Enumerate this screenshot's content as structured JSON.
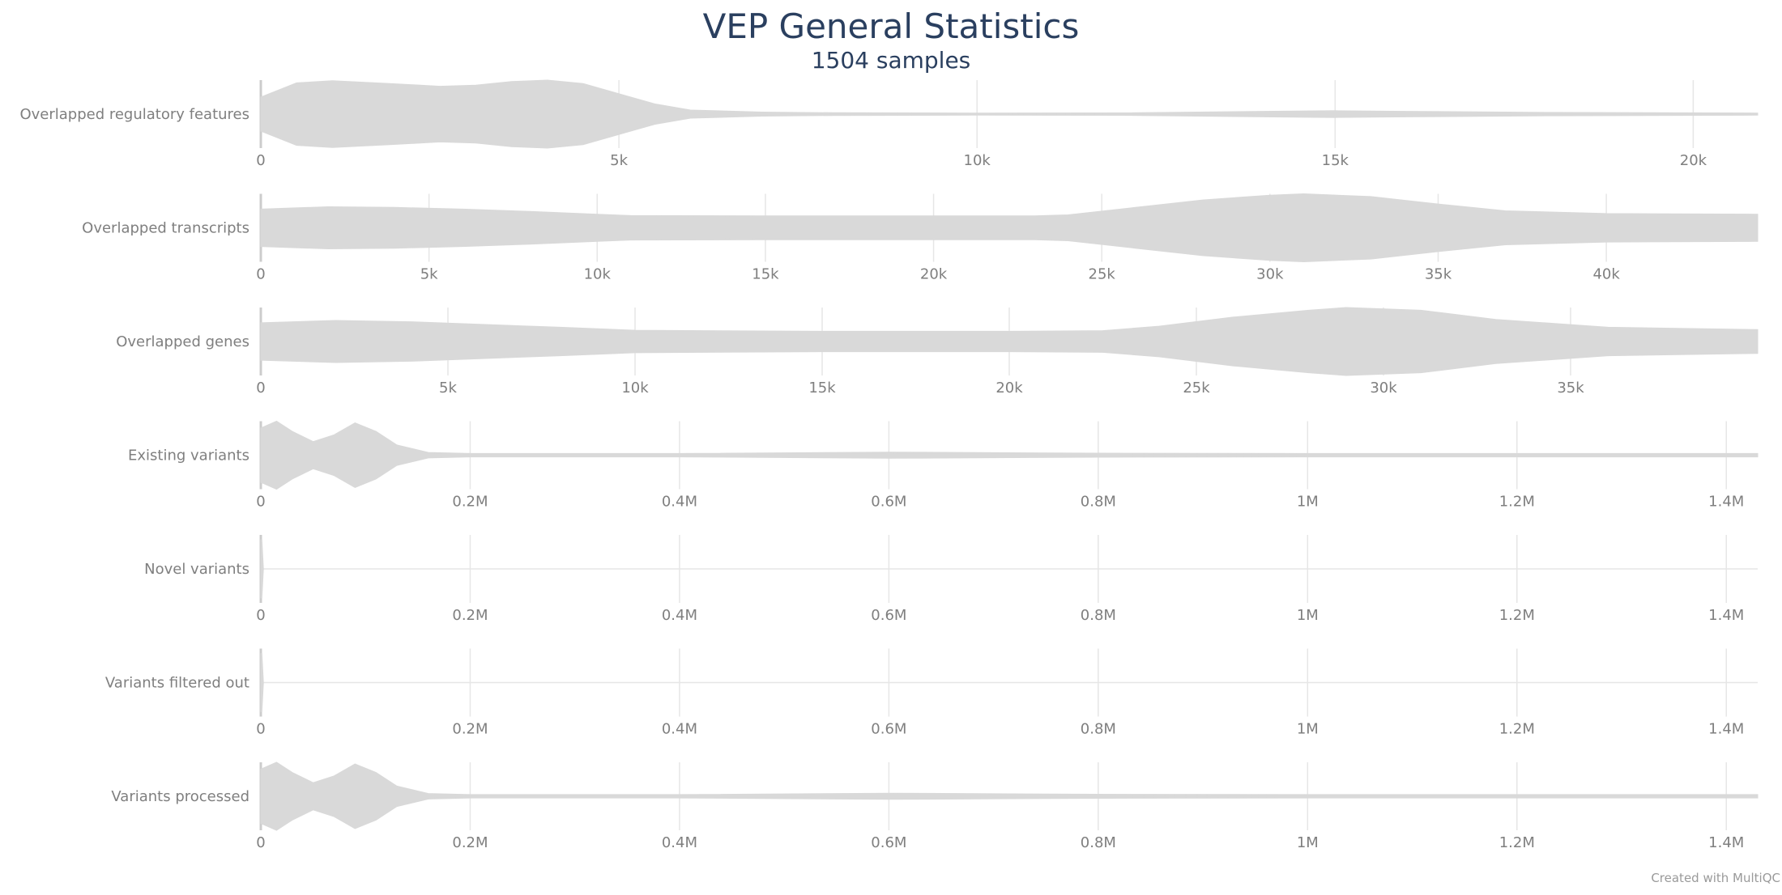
{
  "title": "VEP General Statistics",
  "subtitle": "1504 samples",
  "credit": "Created with MultiQC",
  "colors": {
    "violin": "#d9d9d9",
    "grid": "#e6e6e6",
    "axis": "#cccccc"
  },
  "chart_data": {
    "type": "violin",
    "grid": true,
    "metrics": [
      {
        "label": "Overlapped regulatory features",
        "range": [
          0,
          20900
        ],
        "ticks": [
          0,
          5000,
          10000,
          15000,
          20000
        ],
        "tick_labels": [
          "0",
          "5k",
          "10k",
          "15k",
          "20k"
        ],
        "density": [
          [
            0,
            0.5
          ],
          [
            500,
            0.92
          ],
          [
            1000,
            0.98
          ],
          [
            1800,
            0.9
          ],
          [
            2500,
            0.82
          ],
          [
            3000,
            0.85
          ],
          [
            3500,
            0.96
          ],
          [
            4000,
            1.0
          ],
          [
            4500,
            0.9
          ],
          [
            5000,
            0.6
          ],
          [
            5500,
            0.3
          ],
          [
            6000,
            0.12
          ],
          [
            7000,
            0.06
          ],
          [
            8000,
            0.04
          ],
          [
            10000,
            0.03
          ],
          [
            12000,
            0.035
          ],
          [
            14000,
            0.08
          ],
          [
            15000,
            0.1
          ],
          [
            16000,
            0.08
          ],
          [
            18000,
            0.05
          ],
          [
            20900,
            0.03
          ]
        ]
      },
      {
        "label": "Overlapped transcripts",
        "range": [
          0,
          44500
        ],
        "ticks": [
          0,
          5000,
          10000,
          15000,
          20000,
          25000,
          30000,
          35000,
          40000
        ],
        "tick_labels": [
          "0",
          "5k",
          "10k",
          "15k",
          "20k",
          "25k",
          "30k",
          "35k",
          "40k"
        ],
        "density": [
          [
            0,
            0.55
          ],
          [
            2000,
            0.62
          ],
          [
            4000,
            0.6
          ],
          [
            6000,
            0.55
          ],
          [
            8000,
            0.48
          ],
          [
            10000,
            0.4
          ],
          [
            11000,
            0.36
          ],
          [
            15000,
            0.35
          ],
          [
            20000,
            0.35
          ],
          [
            23000,
            0.35
          ],
          [
            24000,
            0.38
          ],
          [
            26000,
            0.6
          ],
          [
            28000,
            0.82
          ],
          [
            30000,
            0.96
          ],
          [
            31000,
            1.0
          ],
          [
            33000,
            0.92
          ],
          [
            35000,
            0.7
          ],
          [
            37000,
            0.5
          ],
          [
            40000,
            0.42
          ],
          [
            44500,
            0.4
          ]
        ]
      },
      {
        "label": "Overlapped genes",
        "range": [
          0,
          40000
        ],
        "ticks": [
          0,
          5000,
          10000,
          15000,
          20000,
          25000,
          30000,
          35000
        ],
        "tick_labels": [
          "0",
          "5k",
          "10k",
          "15k",
          "20k",
          "25k",
          "30k",
          "35k"
        ],
        "density": [
          [
            0,
            0.55
          ],
          [
            2000,
            0.62
          ],
          [
            4000,
            0.58
          ],
          [
            6000,
            0.5
          ],
          [
            8000,
            0.42
          ],
          [
            10000,
            0.33
          ],
          [
            15000,
            0.3
          ],
          [
            20000,
            0.3
          ],
          [
            22500,
            0.32
          ],
          [
            24000,
            0.45
          ],
          [
            26000,
            0.72
          ],
          [
            28000,
            0.92
          ],
          [
            29000,
            1.0
          ],
          [
            31000,
            0.92
          ],
          [
            33000,
            0.65
          ],
          [
            36000,
            0.42
          ],
          [
            40000,
            0.35
          ]
        ]
      },
      {
        "label": "Existing variants",
        "range": [
          0,
          1430000
        ],
        "ticks": [
          0,
          200000,
          400000,
          600000,
          800000,
          1000000,
          1200000,
          1400000
        ],
        "tick_labels": [
          "0",
          "0.2M",
          "0.4M",
          "0.6M",
          "0.8M",
          "1M",
          "1.2M",
          "1.4M"
        ],
        "density": [
          [
            0,
            0.8
          ],
          [
            15000,
            1.0
          ],
          [
            30000,
            0.7
          ],
          [
            50000,
            0.4
          ],
          [
            70000,
            0.6
          ],
          [
            90000,
            0.95
          ],
          [
            110000,
            0.7
          ],
          [
            130000,
            0.3
          ],
          [
            160000,
            0.08
          ],
          [
            200000,
            0.05
          ],
          [
            400000,
            0.05
          ],
          [
            600000,
            0.09
          ],
          [
            800000,
            0.06
          ],
          [
            1000000,
            0.05
          ],
          [
            1430000,
            0.05
          ]
        ]
      },
      {
        "label": "Novel variants",
        "range": [
          0,
          1430000
        ],
        "ticks": [
          0,
          200000,
          400000,
          600000,
          800000,
          1000000,
          1200000,
          1400000
        ],
        "tick_labels": [
          "0",
          "0.2M",
          "0.4M",
          "0.6M",
          "0.8M",
          "1M",
          "1.2M",
          "1.4M"
        ],
        "density": [
          [
            0,
            0.85
          ],
          [
            1000,
            0.85
          ],
          [
            2500,
            0
          ]
        ]
      },
      {
        "label": "Variants filtered out",
        "range": [
          0,
          1430000
        ],
        "ticks": [
          0,
          200000,
          400000,
          600000,
          800000,
          1000000,
          1200000,
          1400000
        ],
        "tick_labels": [
          "0",
          "0.2M",
          "0.4M",
          "0.6M",
          "0.8M",
          "1M",
          "1.2M",
          "1.4M"
        ],
        "density": [
          [
            0,
            0.85
          ],
          [
            1000,
            0.85
          ],
          [
            2500,
            0
          ]
        ]
      },
      {
        "label": "Variants processed",
        "range": [
          0,
          1430000
        ],
        "ticks": [
          0,
          200000,
          400000,
          600000,
          800000,
          1000000,
          1200000,
          1400000
        ],
        "tick_labels": [
          "0",
          "0.2M",
          "0.4M",
          "0.6M",
          "0.8M",
          "1M",
          "1.2M",
          "1.4M"
        ],
        "density": [
          [
            0,
            0.8
          ],
          [
            15000,
            1.0
          ],
          [
            30000,
            0.7
          ],
          [
            50000,
            0.4
          ],
          [
            70000,
            0.6
          ],
          [
            90000,
            0.95
          ],
          [
            110000,
            0.7
          ],
          [
            130000,
            0.3
          ],
          [
            160000,
            0.08
          ],
          [
            200000,
            0.05
          ],
          [
            400000,
            0.05
          ],
          [
            600000,
            0.09
          ],
          [
            800000,
            0.06
          ],
          [
            1000000,
            0.05
          ],
          [
            1430000,
            0.05
          ]
        ]
      }
    ]
  }
}
